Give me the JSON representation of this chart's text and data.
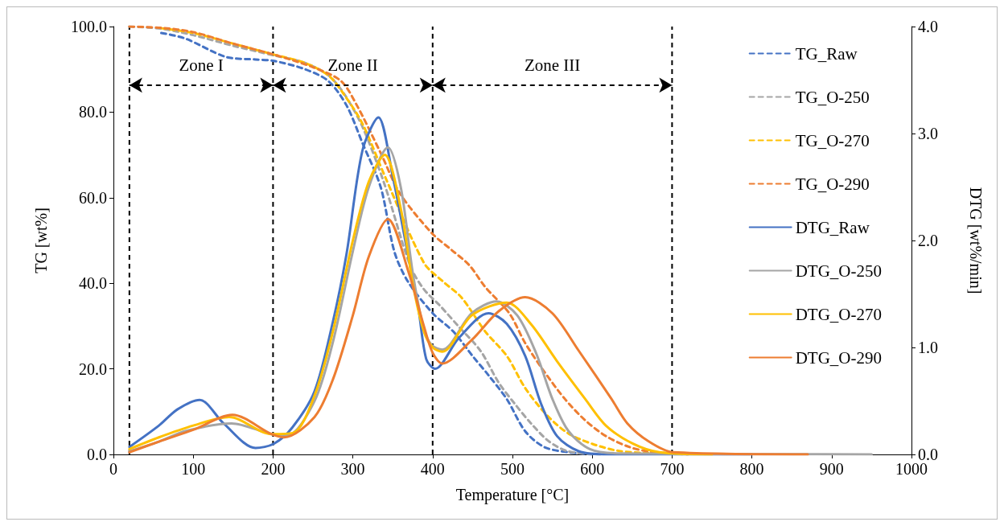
{
  "chart_data": {
    "type": "line",
    "xlabel": "Temperature [°C]",
    "ylabel": "TG [wt%]",
    "y2label": "DTG [wt%/min]",
    "xlim": [
      0,
      1000
    ],
    "xticks": [
      0,
      100,
      200,
      300,
      400,
      500,
      600,
      700,
      800,
      900,
      1000
    ],
    "ylim": [
      0,
      100
    ],
    "yticks": [
      {
        "value": 0,
        "label": "0.0"
      },
      {
        "value": 20,
        "label": "20.0"
      },
      {
        "value": 40,
        "label": "40.0"
      },
      {
        "value": 60,
        "label": "60.0"
      },
      {
        "value": 80,
        "label": "80.0"
      },
      {
        "value": 100,
        "label": "100.0"
      }
    ],
    "y2lim": [
      0,
      4
    ],
    "y2ticks": [
      {
        "value": 0,
        "label": "0.0"
      },
      {
        "value": 1,
        "label": "1.0"
      },
      {
        "value": 2,
        "label": "2.0"
      },
      {
        "value": 3,
        "label": "3.0"
      },
      {
        "value": 4,
        "label": "4.0"
      }
    ],
    "grid": false,
    "legend": "right",
    "marker": "none",
    "ref_lines": [
      {
        "axis": "x",
        "value": 20,
        "color": "#000000",
        "line_style": "dashed"
      },
      {
        "axis": "x",
        "value": 200,
        "color": "#000000",
        "line_style": "dashed"
      },
      {
        "axis": "x",
        "value": 400,
        "color": "#000000",
        "line_style": "dashed"
      },
      {
        "axis": "x",
        "value": 700,
        "color": "#000000",
        "line_style": "dashed"
      }
    ],
    "annotations": [
      "Zone I",
      "Zone II",
      "Zone III"
    ],
    "series": [
      {
        "name": "TG_Raw",
        "color": "#4472c4",
        "line_style": "dashed",
        "x": [
          60,
          90,
          141,
          178,
          200,
          239,
          269,
          292,
          312,
          335,
          352,
          369,
          400,
          426,
          450,
          470,
          493,
          516,
          540,
          570,
          600
        ],
        "values": [
          98.5,
          97.2,
          92.9,
          92.3,
          92,
          90.1,
          87.3,
          81.6,
          72.8,
          62.4,
          47.4,
          40.4,
          33,
          28.7,
          23,
          18.5,
          12.9,
          5.4,
          1.7,
          0.5,
          0
        ]
      },
      {
        "name": "TG_O-250",
        "color": "#a5a5a5",
        "line_style": "dashed",
        "x": [
          20,
          60,
          100,
          150,
          200,
          240,
          270,
          290,
          312,
          339,
          372,
          389,
          409,
          433,
          460,
          483,
          503,
          523,
          546,
          570,
          610
        ],
        "values": [
          100,
          99.5,
          98,
          95.5,
          93.3,
          91.5,
          88.5,
          84,
          76.6,
          63.5,
          44,
          38.6,
          34.8,
          29.8,
          24.2,
          16.7,
          11.8,
          7.3,
          3,
          0.7,
          0
        ]
      },
      {
        "name": "TG_O-270",
        "color": "#ffc000",
        "line_style": "dashed",
        "x": [
          60,
          100,
          150,
          200,
          240,
          270,
          289,
          312,
          342,
          389,
          413,
          436,
          466,
          493,
          516,
          543,
          570,
          601,
          634,
          680
        ],
        "values": [
          99.6,
          98.5,
          96,
          93.5,
          91.5,
          88.5,
          84.1,
          77.3,
          64.2,
          44.8,
          40.4,
          36.7,
          28.7,
          23,
          15.5,
          9.2,
          4.9,
          2.4,
          0.8,
          0.2
        ]
      },
      {
        "name": "TG_O-290",
        "color": "#ed7d31",
        "line_style": "dashed",
        "x": [
          20,
          60,
          100,
          150,
          200,
          250,
          285,
          305,
          335,
          359,
          399,
          423,
          446,
          466,
          496,
          516,
          540,
          566,
          591,
          617,
          647,
          674,
          720
        ],
        "values": [
          100,
          99.7,
          98.7,
          96,
          93.5,
          90.5,
          87.3,
          81.6,
          70.4,
          61,
          51.7,
          47.9,
          44.2,
          39.1,
          33,
          26,
          19.3,
          12.9,
          8,
          4.3,
          1.7,
          0.6,
          0
        ]
      },
      {
        "name": "DTG_Raw",
        "color": "#4472c4",
        "line_style": "solid",
        "axis": "y2",
        "x": [
          20,
          57,
          80,
          108,
          138,
          178,
          201,
          224,
          252,
          275,
          292,
          312,
          332,
          350,
          369,
          382,
          392,
          403,
          433,
          470,
          493,
          516,
          536,
          556,
          583,
          620,
          800
        ],
        "values": [
          0.07,
          0.27,
          0.42,
          0.51,
          0.29,
          0.06,
          0.1,
          0.25,
          0.59,
          1.24,
          1.87,
          2.84,
          3.15,
          2.6,
          1.87,
          1.37,
          0.89,
          0.8,
          1.09,
          1.32,
          1.22,
          0.92,
          0.47,
          0.17,
          0.03,
          0,
          0
        ]
      },
      {
        "name": "DTG_O-250",
        "color": "#a5a5a5",
        "line_style": "solid",
        "axis": "y2",
        "x": [
          20,
          57,
          91,
          148,
          198,
          218,
          252,
          275,
          300,
          320,
          344,
          360,
          375,
          389,
          399,
          412,
          449,
          480,
          506,
          530,
          550,
          570,
          597,
          634,
          950
        ],
        "values": [
          0.03,
          0.12,
          0.22,
          0.29,
          0.19,
          0.18,
          0.5,
          1.05,
          1.9,
          2.5,
          2.87,
          2.5,
          1.7,
          1.17,
          1.02,
          0.98,
          1.32,
          1.43,
          1.3,
          0.94,
          0.52,
          0.22,
          0.05,
          0.01,
          0
        ]
      },
      {
        "name": "DTG_O-270",
        "color": "#ffc000",
        "line_style": "solid",
        "axis": "y2",
        "x": [
          20,
          57,
          100,
          145,
          198,
          225,
          252,
          275,
          300,
          320,
          340,
          360,
          375,
          389,
          400,
          412,
          449,
          493,
          523,
          556,
          591,
          617,
          651,
          684,
          750
        ],
        "values": [
          0.05,
          0.16,
          0.27,
          0.35,
          0.19,
          0.2,
          0.55,
          1.15,
          2,
          2.55,
          2.8,
          2.3,
          1.6,
          1.15,
          1,
          0.96,
          1.3,
          1.42,
          1.22,
          0.87,
          0.52,
          0.27,
          0.1,
          0.02,
          0
        ]
      },
      {
        "name": "DTG_O-290",
        "color": "#ed7d31",
        "line_style": "solid",
        "axis": "y2",
        "x": [
          20,
          57,
          100,
          149,
          198,
          214,
          252,
          275,
          300,
          320,
          344,
          370,
          389,
          400,
          412,
          449,
          483,
          516,
          550,
          583,
          624,
          644,
          671,
          701,
          870
        ],
        "values": [
          0.02,
          0.12,
          0.23,
          0.37,
          0.19,
          0.16,
          0.35,
          0.7,
          1.3,
          1.85,
          2.2,
          1.7,
          1.2,
          0.95,
          0.85,
          1.07,
          1.34,
          1.47,
          1.32,
          0.97,
          0.52,
          0.29,
          0.12,
          0.02,
          0
        ]
      }
    ]
  }
}
